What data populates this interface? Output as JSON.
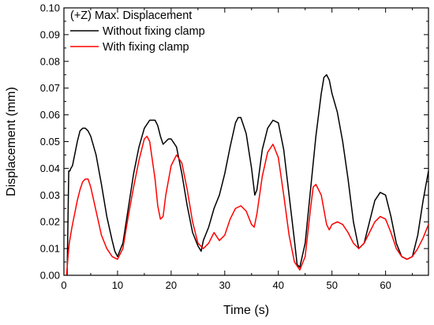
{
  "chart_data": {
    "type": "line",
    "title": "",
    "xlabel": "Time (s)",
    "ylabel": "Displacement (mm)",
    "xlim": [
      0,
      68
    ],
    "ylim": [
      0,
      0.1
    ],
    "x_ticks": [
      0,
      10,
      20,
      30,
      40,
      50,
      60
    ],
    "y_ticks": [
      0.0,
      0.01,
      0.02,
      0.03,
      0.04,
      0.05,
      0.06,
      0.07,
      0.08,
      0.09,
      0.1
    ],
    "x_tick_labels": [
      "0",
      "10",
      "20",
      "30",
      "40",
      "50",
      "60"
    ],
    "y_tick_labels": [
      "0.00",
      "0.01",
      "0.02",
      "0.03",
      "0.04",
      "0.05",
      "0.06",
      "0.07",
      "0.08",
      "0.09",
      "0.10"
    ],
    "grid": false,
    "legend": {
      "title": "(+Z) Max. Displacement",
      "position": "top-left"
    },
    "series": [
      {
        "name": "Without fixing clamp",
        "color": "#000000",
        "x": [
          0.6,
          0.9,
          1.1,
          1.3,
          1.6,
          2.0,
          2.5,
          3.0,
          3.5,
          4.0,
          4.5,
          5.0,
          6.0,
          7.0,
          8.0,
          9.0,
          9.5,
          10.0,
          11.0,
          12.0,
          13.0,
          14.0,
          15.0,
          16.0,
          17.0,
          17.5,
          18.0,
          18.5,
          19.0,
          19.5,
          20.0,
          21.0,
          22.0,
          23.0,
          24.0,
          25.0,
          25.6,
          26.0,
          27.0,
          28.0,
          29.0,
          30.0,
          31.0,
          32.0,
          32.5,
          33.0,
          34.0,
          35.0,
          35.6,
          36.0,
          37.0,
          38.0,
          39.0,
          40.0,
          41.0,
          42.0,
          43.0,
          43.5,
          44.0,
          45.0,
          46.0,
          47.0,
          48.0,
          48.5,
          49.0,
          49.5,
          50.0,
          51.0,
          52.0,
          53.0,
          54.0,
          55.0,
          56.0,
          57.0,
          58.0,
          59.0,
          60.0,
          61.0,
          62.0,
          63.0,
          64.0,
          65.0,
          66.0,
          67.0,
          68.0
        ],
        "y": [
          0.0,
          0.039,
          0.039,
          0.04,
          0.041,
          0.045,
          0.05,
          0.054,
          0.055,
          0.055,
          0.054,
          0.052,
          0.045,
          0.034,
          0.022,
          0.013,
          0.009,
          0.007,
          0.012,
          0.025,
          0.038,
          0.048,
          0.055,
          0.058,
          0.058,
          0.056,
          0.052,
          0.049,
          0.05,
          0.051,
          0.051,
          0.048,
          0.038,
          0.026,
          0.016,
          0.011,
          0.009,
          0.013,
          0.018,
          0.025,
          0.03,
          0.038,
          0.048,
          0.057,
          0.059,
          0.059,
          0.053,
          0.04,
          0.03,
          0.032,
          0.047,
          0.055,
          0.058,
          0.057,
          0.047,
          0.03,
          0.013,
          0.004,
          0.003,
          0.012,
          0.032,
          0.052,
          0.068,
          0.074,
          0.075,
          0.073,
          0.068,
          0.061,
          0.05,
          0.036,
          0.02,
          0.01,
          0.012,
          0.02,
          0.028,
          0.031,
          0.03,
          0.022,
          0.012,
          0.007,
          0.006,
          0.007,
          0.015,
          0.028,
          0.039
        ]
      },
      {
        "name": "With fixing clamp",
        "color": "#ff0000",
        "x": [
          0.5,
          0.8,
          1.0,
          1.5,
          2.0,
          2.5,
          3.0,
          3.5,
          4.0,
          4.5,
          5.0,
          6.0,
          7.0,
          8.0,
          9.0,
          10.0,
          11.0,
          12.0,
          13.0,
          14.0,
          15.0,
          15.5,
          16.0,
          17.0,
          17.5,
          18.0,
          18.5,
          19.0,
          20.0,
          21.0,
          22.0,
          23.0,
          24.0,
          25.0,
          26.0,
          27.0,
          28.0,
          29.0,
          30.0,
          31.0,
          32.0,
          33.0,
          34.0,
          35.0,
          35.5,
          36.0,
          37.0,
          38.0,
          39.0,
          40.0,
          41.0,
          42.0,
          43.0,
          44.0,
          45.0,
          46.0,
          46.5,
          47.0,
          48.0,
          49.0,
          49.5,
          50.0,
          51.0,
          52.0,
          53.0,
          54.0,
          55.0,
          56.0,
          57.0,
          58.0,
          59.0,
          60.0,
          61.0,
          62.0,
          63.0,
          64.0,
          65.0,
          66.0,
          67.0,
          68.0
        ],
        "y": [
          0.0,
          0.008,
          0.012,
          0.018,
          0.023,
          0.028,
          0.032,
          0.035,
          0.036,
          0.036,
          0.033,
          0.024,
          0.015,
          0.01,
          0.007,
          0.006,
          0.01,
          0.022,
          0.033,
          0.043,
          0.051,
          0.052,
          0.05,
          0.036,
          0.026,
          0.021,
          0.022,
          0.03,
          0.041,
          0.045,
          0.042,
          0.032,
          0.02,
          0.012,
          0.01,
          0.012,
          0.016,
          0.013,
          0.015,
          0.021,
          0.025,
          0.026,
          0.024,
          0.019,
          0.018,
          0.023,
          0.037,
          0.046,
          0.049,
          0.044,
          0.03,
          0.015,
          0.005,
          0.002,
          0.007,
          0.025,
          0.033,
          0.034,
          0.03,
          0.019,
          0.017,
          0.019,
          0.02,
          0.019,
          0.016,
          0.012,
          0.01,
          0.012,
          0.016,
          0.02,
          0.022,
          0.021,
          0.016,
          0.01,
          0.007,
          0.006,
          0.007,
          0.01,
          0.014,
          0.019
        ]
      }
    ]
  }
}
